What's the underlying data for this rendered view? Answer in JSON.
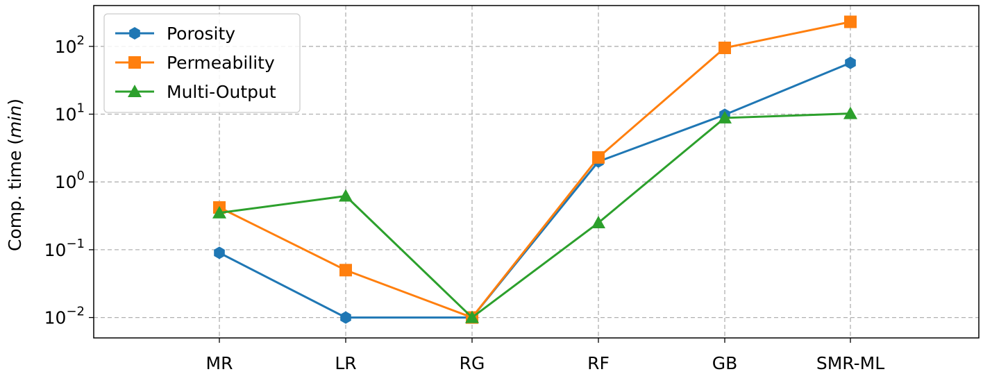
{
  "chart_data": {
    "type": "line",
    "xlabel": "",
    "ylabel": "Comp. time",
    "ylabel_unit": "min",
    "yscale": "log",
    "ylim": [
      0.005,
      400
    ],
    "grid": true,
    "legend_position": "top-left",
    "categories": [
      "MR",
      "LR",
      "RG",
      "RF",
      "GB",
      "SMR-ML"
    ],
    "y_ticks": [
      {
        "value": 0.01,
        "base": "10",
        "exp": "−2"
      },
      {
        "value": 0.1,
        "base": "10",
        "exp": "−1"
      },
      {
        "value": 1,
        "base": "10",
        "exp": "0"
      },
      {
        "value": 10,
        "base": "10",
        "exp": "1"
      },
      {
        "value": 100,
        "base": "10",
        "exp": "2"
      }
    ],
    "series": [
      {
        "name": "Porosity",
        "color": "#1f77b4",
        "marker": "hexagon",
        "values": [
          0.09,
          0.01,
          0.01,
          2.0,
          9.8,
          57
        ]
      },
      {
        "name": "Permeability",
        "color": "#ff7f0e",
        "marker": "square",
        "values": [
          0.42,
          0.05,
          0.01,
          2.3,
          95,
          230
        ]
      },
      {
        "name": "Multi-Output",
        "color": "#2ca02c",
        "marker": "triangle",
        "values": [
          0.35,
          0.62,
          0.01,
          0.25,
          8.8,
          10.2
        ]
      }
    ]
  }
}
